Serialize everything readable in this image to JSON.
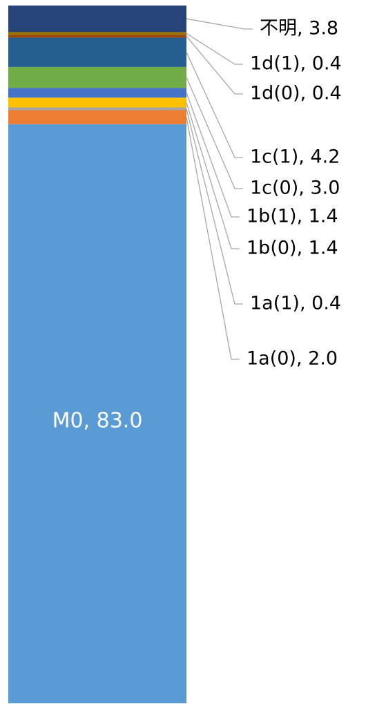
{
  "chart_data": {
    "type": "bar",
    "stacked": true,
    "orientation": "vertical",
    "segments": [
      {
        "name": "M0",
        "value": 83.0,
        "label": "M0, 83.0",
        "color": "#5b9bd5"
      },
      {
        "name": "1a(0)",
        "value": 2.0,
        "label": "1a(0), 2.0",
        "color": "#ed7d31"
      },
      {
        "name": "1a(1)",
        "value": 0.4,
        "label": "1a(1), 0.4",
        "color": "#a5a5a5"
      },
      {
        "name": "1b(0)",
        "value": 1.4,
        "label": "1b(0), 1.4",
        "color": "#ffc000"
      },
      {
        "name": "1b(1)",
        "value": 1.4,
        "label": "1b(1), 1.4",
        "color": "#4472c4"
      },
      {
        "name": "1c(0)",
        "value": 3.0,
        "label": "1c(0), 3.0",
        "color": "#70ad47"
      },
      {
        "name": "1c(1)",
        "value": 4.2,
        "label": "1c(1), 4.2",
        "color": "#255e91"
      },
      {
        "name": "1d(0)",
        "value": 0.4,
        "label": "1d(0), 0.4",
        "color": "#9e480e"
      },
      {
        "name": "1d(1)",
        "value": 0.4,
        "label": "1d(1), 0.4",
        "color": "#997300"
      },
      {
        "name": "不明",
        "value": 3.8,
        "label": "不明, 3.8",
        "color": "#264478"
      }
    ]
  }
}
